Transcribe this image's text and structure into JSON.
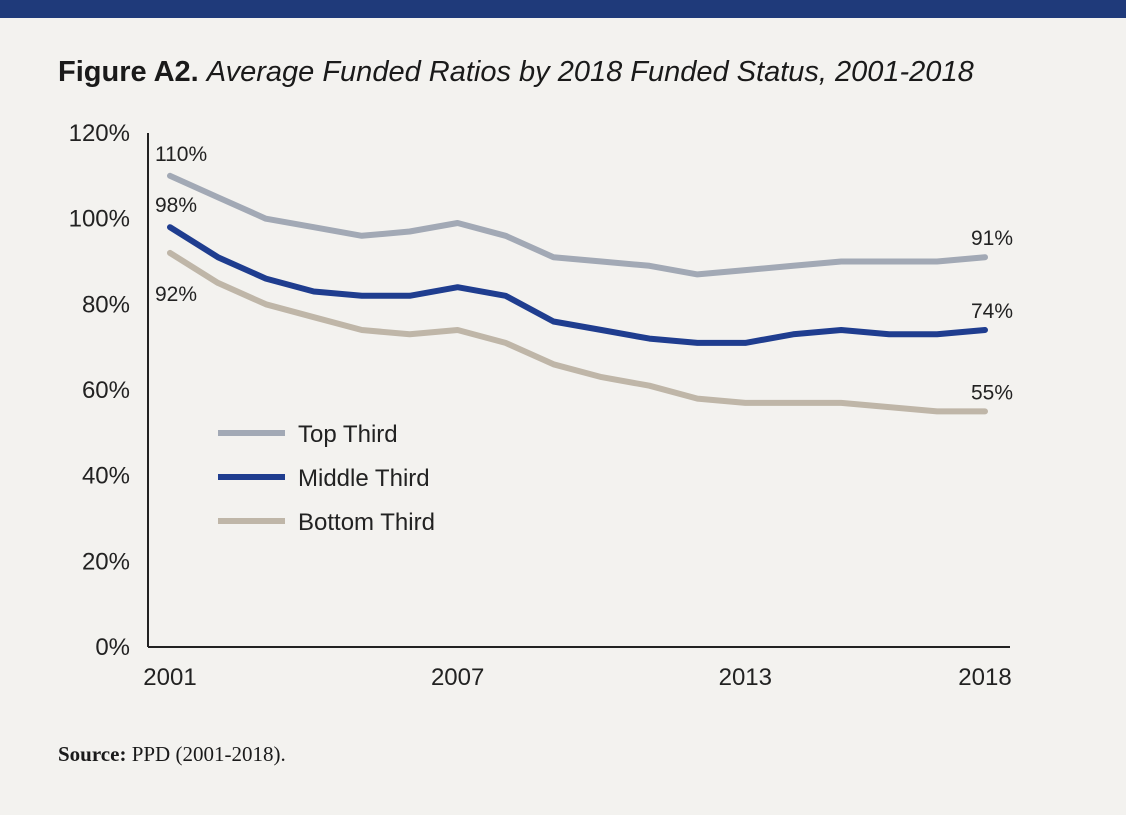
{
  "title": {
    "figure": "Figure A2.",
    "subtitle": "Average Funded Ratios by 2018 Funded Status, 2001-2018"
  },
  "source": {
    "label": "Source:",
    "text": "PPD (2001-2018)."
  },
  "colors": {
    "top_bar": "#1f3a7a",
    "background": "#f3f2ef"
  },
  "chart_data": {
    "type": "line",
    "x": [
      2001,
      2002,
      2003,
      2004,
      2005,
      2006,
      2007,
      2008,
      2009,
      2010,
      2011,
      2012,
      2013,
      2014,
      2015,
      2016,
      2017,
      2018
    ],
    "x_ticks": [
      "2001",
      "2007",
      "2013",
      "2018"
    ],
    "y_ticks": [
      "0%",
      "20%",
      "40%",
      "60%",
      "80%",
      "100%",
      "120%"
    ],
    "ylim": [
      0,
      120
    ],
    "series": [
      {
        "name": "Top Third",
        "color": "#a2a9b5",
        "values": [
          110,
          105,
          100,
          98,
          96,
          97,
          99,
          96,
          91,
          90,
          89,
          87,
          88,
          89,
          90,
          90,
          90,
          91
        ]
      },
      {
        "name": "Middle Third",
        "color": "#1f3d8f",
        "values": [
          98,
          91,
          86,
          83,
          82,
          82,
          84,
          82,
          76,
          74,
          72,
          71,
          71,
          73,
          74,
          73,
          73,
          74
        ]
      },
      {
        "name": "Bottom Third",
        "color": "#bfb6a8",
        "values": [
          92,
          85,
          80,
          77,
          74,
          73,
          74,
          71,
          66,
          63,
          61,
          58,
          57,
          57,
          57,
          56,
          55,
          55
        ]
      }
    ],
    "annotations": [
      {
        "series": 0,
        "index": 0,
        "text": "110%"
      },
      {
        "series": 1,
        "index": 0,
        "text": "98%"
      },
      {
        "series": 2,
        "index": 0,
        "text": "92%"
      },
      {
        "series": 0,
        "index": 17,
        "text": "91%"
      },
      {
        "series": 1,
        "index": 17,
        "text": "74%"
      },
      {
        "series": 2,
        "index": 17,
        "text": "55%"
      }
    ],
    "grid": false,
    "legend_position": "left-center"
  }
}
